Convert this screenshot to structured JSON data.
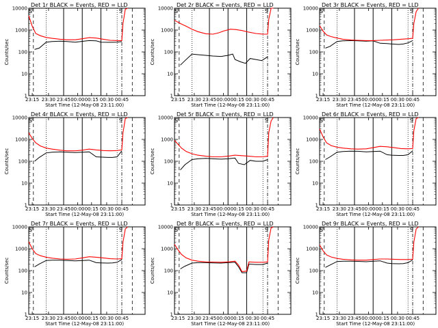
{
  "chart_data": {
    "type": "line",
    "panels": [
      {
        "title": "Det 1r BLACK = Events, RED = LLD",
        "events": [
          [
            0.05,
            130
          ],
          [
            0.09,
            150
          ],
          [
            0.15,
            280
          ],
          [
            0.2,
            300
          ],
          [
            0.27,
            310
          ],
          [
            0.33,
            300
          ],
          [
            0.4,
            280
          ],
          [
            0.46,
            305
          ],
          [
            0.52,
            330
          ],
          [
            0.58,
            320
          ],
          [
            0.62,
            280
          ],
          [
            0.68,
            275
          ],
          [
            0.72,
            275
          ],
          [
            0.76,
            280
          ],
          [
            0.8,
            300
          ]
        ],
        "lld": [
          [
            0.0,
            4500
          ],
          [
            0.03,
            1500
          ],
          [
            0.06,
            700
          ],
          [
            0.1,
            550
          ],
          [
            0.15,
            460
          ],
          [
            0.2,
            420
          ],
          [
            0.27,
            380
          ],
          [
            0.33,
            360
          ],
          [
            0.4,
            360
          ],
          [
            0.46,
            400
          ],
          [
            0.52,
            450
          ],
          [
            0.58,
            430
          ],
          [
            0.64,
            380
          ],
          [
            0.7,
            340
          ],
          [
            0.76,
            330
          ],
          [
            0.8,
            330
          ],
          [
            0.81,
            2000
          ],
          [
            0.83,
            9000
          ],
          [
            0.85,
            10000
          ]
        ]
      },
      {
        "title": "Det 2r BLACK = Events, RED = LLD",
        "events": [
          [
            0.05,
            25
          ],
          [
            0.09,
            40
          ],
          [
            0.15,
            80
          ],
          [
            0.2,
            75
          ],
          [
            0.27,
            70
          ],
          [
            0.33,
            65
          ],
          [
            0.4,
            62
          ],
          [
            0.46,
            70
          ],
          [
            0.5,
            80
          ],
          [
            0.52,
            45
          ],
          [
            0.57,
            35
          ],
          [
            0.61,
            30
          ],
          [
            0.65,
            50
          ],
          [
            0.7,
            45
          ],
          [
            0.75,
            40
          ],
          [
            0.8,
            60
          ]
        ],
        "lld": [
          [
            0.0,
            2800
          ],
          [
            0.05,
            2000
          ],
          [
            0.1,
            1500
          ],
          [
            0.15,
            1100
          ],
          [
            0.2,
            850
          ],
          [
            0.27,
            680
          ],
          [
            0.33,
            650
          ],
          [
            0.38,
            750
          ],
          [
            0.42,
            900
          ],
          [
            0.48,
            1100
          ],
          [
            0.53,
            1050
          ],
          [
            0.58,
            950
          ],
          [
            0.64,
            800
          ],
          [
            0.7,
            700
          ],
          [
            0.76,
            650
          ],
          [
            0.8,
            650
          ],
          [
            0.81,
            3000
          ],
          [
            0.83,
            10000
          ],
          [
            0.85,
            10000
          ]
        ]
      },
      {
        "title": "Det 3r BLACK = Events, RED = LLD",
        "events": [
          [
            0.05,
            150
          ],
          [
            0.09,
            180
          ],
          [
            0.15,
            300
          ],
          [
            0.2,
            320
          ],
          [
            0.27,
            330
          ],
          [
            0.33,
            320
          ],
          [
            0.4,
            310
          ],
          [
            0.46,
            320
          ],
          [
            0.52,
            250
          ],
          [
            0.58,
            240
          ],
          [
            0.62,
            230
          ],
          [
            0.68,
            220
          ],
          [
            0.72,
            230
          ],
          [
            0.76,
            260
          ],
          [
            0.8,
            330
          ]
        ],
        "lld": [
          [
            0.0,
            1600
          ],
          [
            0.03,
            900
          ],
          [
            0.06,
            600
          ],
          [
            0.1,
            500
          ],
          [
            0.15,
            430
          ],
          [
            0.2,
            380
          ],
          [
            0.27,
            350
          ],
          [
            0.33,
            340
          ],
          [
            0.4,
            330
          ],
          [
            0.46,
            330
          ],
          [
            0.52,
            340
          ],
          [
            0.58,
            350
          ],
          [
            0.64,
            360
          ],
          [
            0.7,
            380
          ],
          [
            0.76,
            400
          ],
          [
            0.8,
            420
          ],
          [
            0.81,
            2000
          ],
          [
            0.83,
            7000
          ],
          [
            0.85,
            10000
          ]
        ]
      },
      {
        "title": "Det 4r BLACK = Events, RED = LLD",
        "events": [
          [
            0.05,
            100
          ],
          [
            0.09,
            150
          ],
          [
            0.15,
            240
          ],
          [
            0.2,
            260
          ],
          [
            0.27,
            270
          ],
          [
            0.33,
            260
          ],
          [
            0.4,
            250
          ],
          [
            0.46,
            260
          ],
          [
            0.52,
            270
          ],
          [
            0.58,
            160
          ],
          [
            0.62,
            155
          ],
          [
            0.68,
            150
          ],
          [
            0.72,
            150
          ],
          [
            0.76,
            160
          ],
          [
            0.8,
            300
          ]
        ],
        "lld": [
          [
            0.0,
            2000
          ],
          [
            0.03,
            1100
          ],
          [
            0.06,
            700
          ],
          [
            0.1,
            500
          ],
          [
            0.15,
            400
          ],
          [
            0.2,
            360
          ],
          [
            0.27,
            320
          ],
          [
            0.33,
            300
          ],
          [
            0.4,
            300
          ],
          [
            0.46,
            320
          ],
          [
            0.52,
            360
          ],
          [
            0.58,
            330
          ],
          [
            0.64,
            310
          ],
          [
            0.7,
            300
          ],
          [
            0.76,
            310
          ],
          [
            0.8,
            330
          ],
          [
            0.81,
            2000
          ],
          [
            0.83,
            9000
          ],
          [
            0.85,
            10000
          ]
        ]
      },
      {
        "title": "Det 5r BLACK = Events, RED = LLD",
        "events": [
          [
            0.05,
            40
          ],
          [
            0.09,
            70
          ],
          [
            0.15,
            120
          ],
          [
            0.2,
            130
          ],
          [
            0.27,
            135
          ],
          [
            0.33,
            130
          ],
          [
            0.4,
            125
          ],
          [
            0.46,
            130
          ],
          [
            0.52,
            140
          ],
          [
            0.55,
            80
          ],
          [
            0.6,
            70
          ],
          [
            0.65,
            110
          ],
          [
            0.7,
            100
          ],
          [
            0.76,
            100
          ],
          [
            0.8,
            120
          ]
        ],
        "lld": [
          [
            0.0,
            900
          ],
          [
            0.03,
            600
          ],
          [
            0.06,
            400
          ],
          [
            0.1,
            280
          ],
          [
            0.15,
            220
          ],
          [
            0.2,
            190
          ],
          [
            0.27,
            170
          ],
          [
            0.33,
            160
          ],
          [
            0.4,
            160
          ],
          [
            0.46,
            170
          ],
          [
            0.52,
            190
          ],
          [
            0.58,
            180
          ],
          [
            0.64,
            170
          ],
          [
            0.7,
            160
          ],
          [
            0.76,
            160
          ],
          [
            0.8,
            170
          ],
          [
            0.81,
            2000
          ],
          [
            0.83,
            7000
          ],
          [
            0.85,
            10000
          ]
        ]
      },
      {
        "title": "Det 6r BLACK = Events, RED = LLD",
        "events": [
          [
            0.05,
            120
          ],
          [
            0.09,
            160
          ],
          [
            0.15,
            260
          ],
          [
            0.2,
            280
          ],
          [
            0.27,
            290
          ],
          [
            0.33,
            285
          ],
          [
            0.4,
            270
          ],
          [
            0.46,
            280
          ],
          [
            0.52,
            290
          ],
          [
            0.58,
            200
          ],
          [
            0.62,
            190
          ],
          [
            0.68,
            185
          ],
          [
            0.72,
            185
          ],
          [
            0.76,
            200
          ],
          [
            0.8,
            300
          ]
        ],
        "lld": [
          [
            0.0,
            3000
          ],
          [
            0.03,
            1300
          ],
          [
            0.06,
            700
          ],
          [
            0.1,
            520
          ],
          [
            0.15,
            440
          ],
          [
            0.2,
            400
          ],
          [
            0.27,
            370
          ],
          [
            0.33,
            360
          ],
          [
            0.4,
            370
          ],
          [
            0.46,
            420
          ],
          [
            0.52,
            480
          ],
          [
            0.58,
            460
          ],
          [
            0.64,
            420
          ],
          [
            0.7,
            380
          ],
          [
            0.76,
            370
          ],
          [
            0.8,
            380
          ],
          [
            0.81,
            2500
          ],
          [
            0.83,
            9000
          ],
          [
            0.85,
            10000
          ]
        ]
      },
      {
        "title": "Det 7r BLACK = Events, RED = LLD",
        "events": [
          [
            0.05,
            150
          ],
          [
            0.09,
            200
          ],
          [
            0.15,
            290
          ],
          [
            0.2,
            300
          ],
          [
            0.27,
            300
          ],
          [
            0.33,
            290
          ],
          [
            0.4,
            280
          ],
          [
            0.46,
            290
          ],
          [
            0.52,
            300
          ],
          [
            0.58,
            230
          ],
          [
            0.62,
            225
          ],
          [
            0.68,
            220
          ],
          [
            0.72,
            225
          ],
          [
            0.76,
            240
          ],
          [
            0.8,
            320
          ]
        ],
        "lld": [
          [
            0.0,
            2100
          ],
          [
            0.03,
            1000
          ],
          [
            0.06,
            600
          ],
          [
            0.1,
            480
          ],
          [
            0.15,
            410
          ],
          [
            0.2,
            370
          ],
          [
            0.27,
            340
          ],
          [
            0.33,
            330
          ],
          [
            0.4,
            340
          ],
          [
            0.46,
            380
          ],
          [
            0.52,
            430
          ],
          [
            0.58,
            410
          ],
          [
            0.64,
            380
          ],
          [
            0.7,
            350
          ],
          [
            0.76,
            340
          ],
          [
            0.8,
            350
          ],
          [
            0.81,
            2000
          ],
          [
            0.83,
            8000
          ],
          [
            0.85,
            10000
          ]
        ]
      },
      {
        "title": "Det 8r BLACK = Events, RED = LLD",
        "events": [
          [
            0.05,
            120
          ],
          [
            0.09,
            160
          ],
          [
            0.15,
            220
          ],
          [
            0.2,
            230
          ],
          [
            0.27,
            230
          ],
          [
            0.33,
            225
          ],
          [
            0.4,
            220
          ],
          [
            0.46,
            230
          ],
          [
            0.52,
            240
          ],
          [
            0.55,
            150
          ],
          [
            0.58,
            80
          ],
          [
            0.62,
            80
          ],
          [
            0.64,
            200
          ],
          [
            0.7,
            190
          ],
          [
            0.76,
            190
          ],
          [
            0.8,
            220
          ]
        ],
        "lld": [
          [
            0.0,
            1600
          ],
          [
            0.03,
            900
          ],
          [
            0.06,
            550
          ],
          [
            0.1,
            380
          ],
          [
            0.15,
            300
          ],
          [
            0.2,
            270
          ],
          [
            0.27,
            250
          ],
          [
            0.33,
            245
          ],
          [
            0.4,
            240
          ],
          [
            0.46,
            250
          ],
          [
            0.52,
            270
          ],
          [
            0.55,
            180
          ],
          [
            0.58,
            90
          ],
          [
            0.62,
            95
          ],
          [
            0.64,
            250
          ],
          [
            0.7,
            240
          ],
          [
            0.76,
            240
          ],
          [
            0.8,
            250
          ],
          [
            0.81,
            2500
          ],
          [
            0.83,
            9000
          ],
          [
            0.85,
            10000
          ]
        ]
      },
      {
        "title": "Det 9r BLACK = Events, RED = LLD",
        "events": [
          [
            0.05,
            140
          ],
          [
            0.09,
            180
          ],
          [
            0.15,
            260
          ],
          [
            0.2,
            270
          ],
          [
            0.27,
            270
          ],
          [
            0.33,
            265
          ],
          [
            0.4,
            255
          ],
          [
            0.46,
            270
          ],
          [
            0.52,
            280
          ],
          [
            0.58,
            220
          ],
          [
            0.62,
            210
          ],
          [
            0.68,
            205
          ],
          [
            0.72,
            210
          ],
          [
            0.76,
            230
          ],
          [
            0.8,
            310
          ]
        ],
        "lld": [
          [
            0.0,
            1500
          ],
          [
            0.03,
            800
          ],
          [
            0.06,
            520
          ],
          [
            0.1,
            420
          ],
          [
            0.15,
            360
          ],
          [
            0.2,
            330
          ],
          [
            0.27,
            310
          ],
          [
            0.33,
            300
          ],
          [
            0.4,
            300
          ],
          [
            0.46,
            320
          ],
          [
            0.52,
            340
          ],
          [
            0.58,
            340
          ],
          [
            0.64,
            330
          ],
          [
            0.7,
            320
          ],
          [
            0.76,
            320
          ],
          [
            0.8,
            330
          ],
          [
            0.81,
            2000
          ],
          [
            0.83,
            8000
          ],
          [
            0.85,
            10000
          ]
        ]
      }
    ],
    "ylabel": "Counts/sec",
    "xlabel": "Start Time (12-May-08 23:11:00)",
    "x_tick_labels": [
      "23:15",
      "23:30",
      "23:45",
      "00:00",
      "00:15",
      "00:30",
      "00:45"
    ],
    "y_tick_labels": [
      "1",
      "10",
      "100",
      "1000",
      "10000"
    ],
    "ylim": [
      1,
      10000
    ],
    "y_scale": "log",
    "series_colors": {
      "events": "#000000",
      "lld": "#ff0000"
    },
    "marker_text": "S"
  }
}
